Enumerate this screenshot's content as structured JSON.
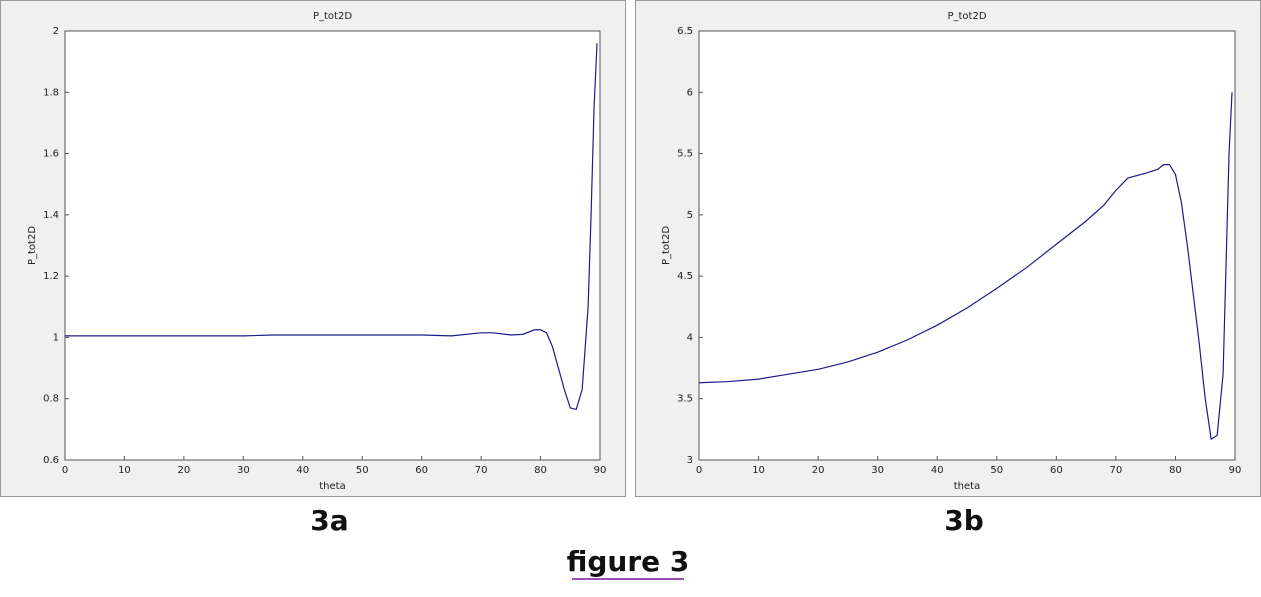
{
  "chart_data": [
    {
      "type": "line",
      "title": "P_tot2D",
      "xlabel": "theta",
      "ylabel": "P_tot2D",
      "caption": "3a",
      "color": "#1c1c8a",
      "x": [
        0,
        10,
        20,
        30,
        35,
        40,
        50,
        60,
        65,
        70,
        72,
        75,
        77,
        79,
        80,
        81,
        82,
        83,
        84,
        85,
        86,
        87,
        88,
        88.5,
        89,
        89.5
      ],
      "values": [
        1.005,
        1.005,
        1.005,
        1.005,
        1.008,
        1.008,
        1.008,
        1.008,
        1.005,
        1.015,
        1.015,
        1.008,
        1.01,
        1.025,
        1.025,
        1.015,
        0.97,
        0.9,
        0.83,
        0.77,
        0.765,
        0.83,
        1.1,
        1.4,
        1.75,
        1.96
      ],
      "xlim": [
        0,
        90
      ],
      "xticks": [
        0,
        10,
        20,
        30,
        40,
        50,
        60,
        70,
        80,
        90
      ],
      "ylim": [
        0.6,
        2
      ],
      "yticks": [
        0.6,
        0.8,
        1,
        1.2,
        1.4,
        1.6,
        1.8,
        2
      ]
    },
    {
      "type": "line",
      "title": "P_tot2D",
      "xlabel": "theta",
      "ylabel": "P_tot2D",
      "caption": "3b",
      "color": "#1c1c8a",
      "x": [
        0,
        5,
        10,
        15,
        20,
        25,
        30,
        35,
        40,
        45,
        50,
        55,
        60,
        65,
        68,
        70,
        72,
        75,
        77,
        78,
        79,
        80,
        81,
        82,
        83,
        84,
        85,
        86,
        87,
        88,
        88.5,
        89,
        89.5
      ],
      "values": [
        3.63,
        3.64,
        3.66,
        3.7,
        3.74,
        3.8,
        3.88,
        3.98,
        4.1,
        4.24,
        4.4,
        4.57,
        4.76,
        4.95,
        5.08,
        5.2,
        5.3,
        5.34,
        5.37,
        5.41,
        5.41,
        5.33,
        5.1,
        4.75,
        4.35,
        3.95,
        3.5,
        3.17,
        3.2,
        3.7,
        4.6,
        5.5,
        6.0
      ],
      "xlim": [
        0,
        90
      ],
      "xticks": [
        0,
        10,
        20,
        30,
        40,
        50,
        60,
        70,
        80,
        90
      ],
      "ylim": [
        3,
        6.5
      ],
      "yticks": [
        3,
        3.5,
        4,
        4.5,
        5,
        5.5,
        6,
        6.5
      ]
    }
  ],
  "figure_caption": "figure 3"
}
